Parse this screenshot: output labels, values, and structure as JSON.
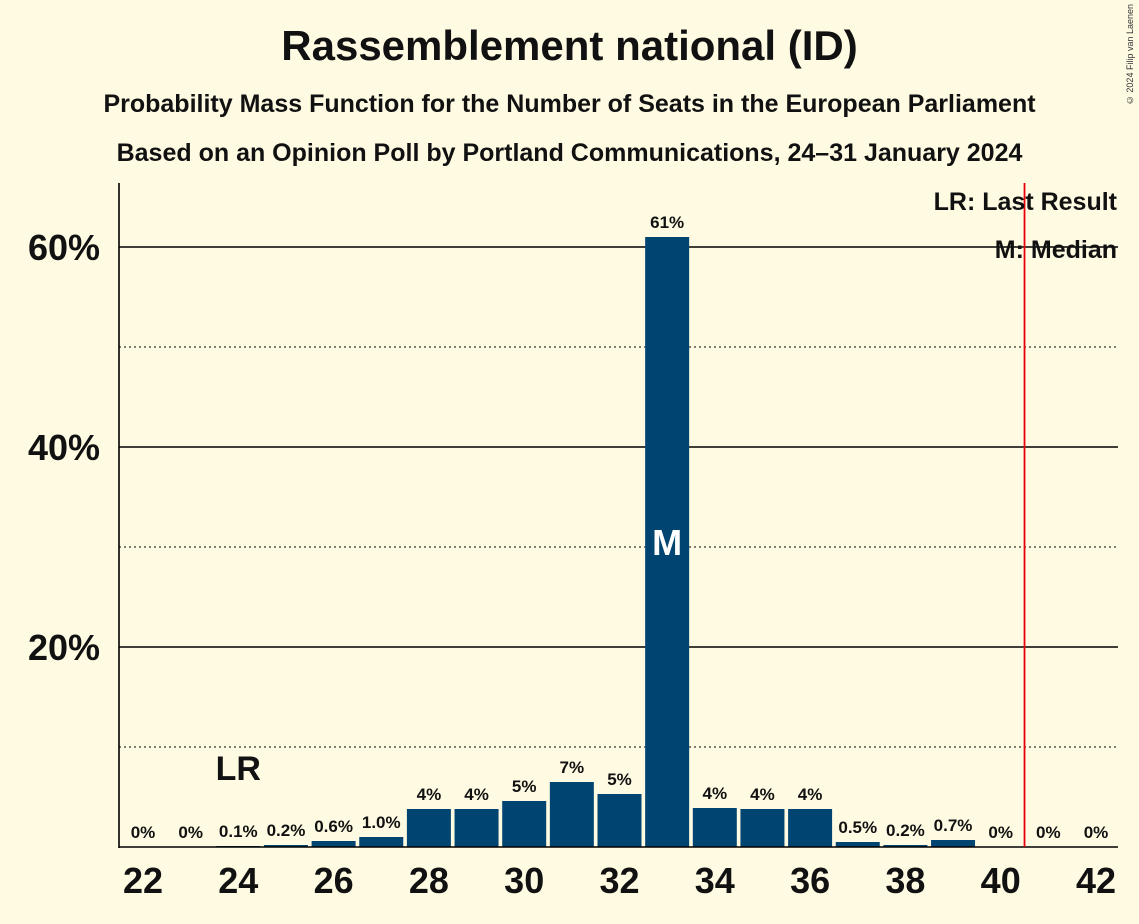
{
  "header": {
    "title": "Rassemblement national (ID)",
    "subtitle1": "Probability Mass Function for the Number of Seats in the European Parliament",
    "subtitle2": "Based on an Opinion Poll by Portland Communications, 24–31 January 2024",
    "copyright": "© 2024 Filip van Laenen"
  },
  "legend": {
    "last_result": "LR: Last Result",
    "median": "M: Median"
  },
  "markers": {
    "last_result_label": "LR",
    "median_label": "M",
    "last_result_seats": 24,
    "median_seats": 33,
    "majority_line_seats": 40.5
  },
  "colors": {
    "bar": "#004571",
    "threshold_line": "#e8000b",
    "background": "#fffbe3"
  },
  "chart_data": {
    "type": "bar",
    "title": "Rassemblement national (ID)",
    "xlabel": "",
    "ylabel": "",
    "x": [
      22,
      23,
      24,
      25,
      26,
      27,
      28,
      29,
      30,
      31,
      32,
      33,
      34,
      35,
      36,
      37,
      38,
      39,
      40,
      41,
      42
    ],
    "values": [
      0,
      0,
      0.1,
      0.2,
      0.6,
      1.0,
      3.8,
      3.8,
      4.6,
      6.5,
      5.3,
      61,
      3.9,
      3.8,
      3.8,
      0.5,
      0.2,
      0.7,
      0,
      0,
      0
    ],
    "data_labels": [
      "0%",
      "0%",
      "0.1%",
      "0.2%",
      "0.6%",
      "1.0%",
      "4%",
      "4%",
      "5%",
      "7%",
      "5%",
      "61%",
      "4%",
      "4%",
      "4%",
      "0.5%",
      "0.2%",
      "0.7%",
      "0%",
      "0%",
      "0%"
    ],
    "x_tick_labels": [
      "22",
      "24",
      "26",
      "28",
      "30",
      "32",
      "34",
      "36",
      "38",
      "40",
      "42"
    ],
    "y_tick_values": [
      20,
      40,
      60
    ],
    "y_tick_labels": [
      "20%",
      "40%",
      "60%"
    ],
    "ylim": [
      0,
      66
    ],
    "grid": true,
    "legend_position": "top-right"
  }
}
